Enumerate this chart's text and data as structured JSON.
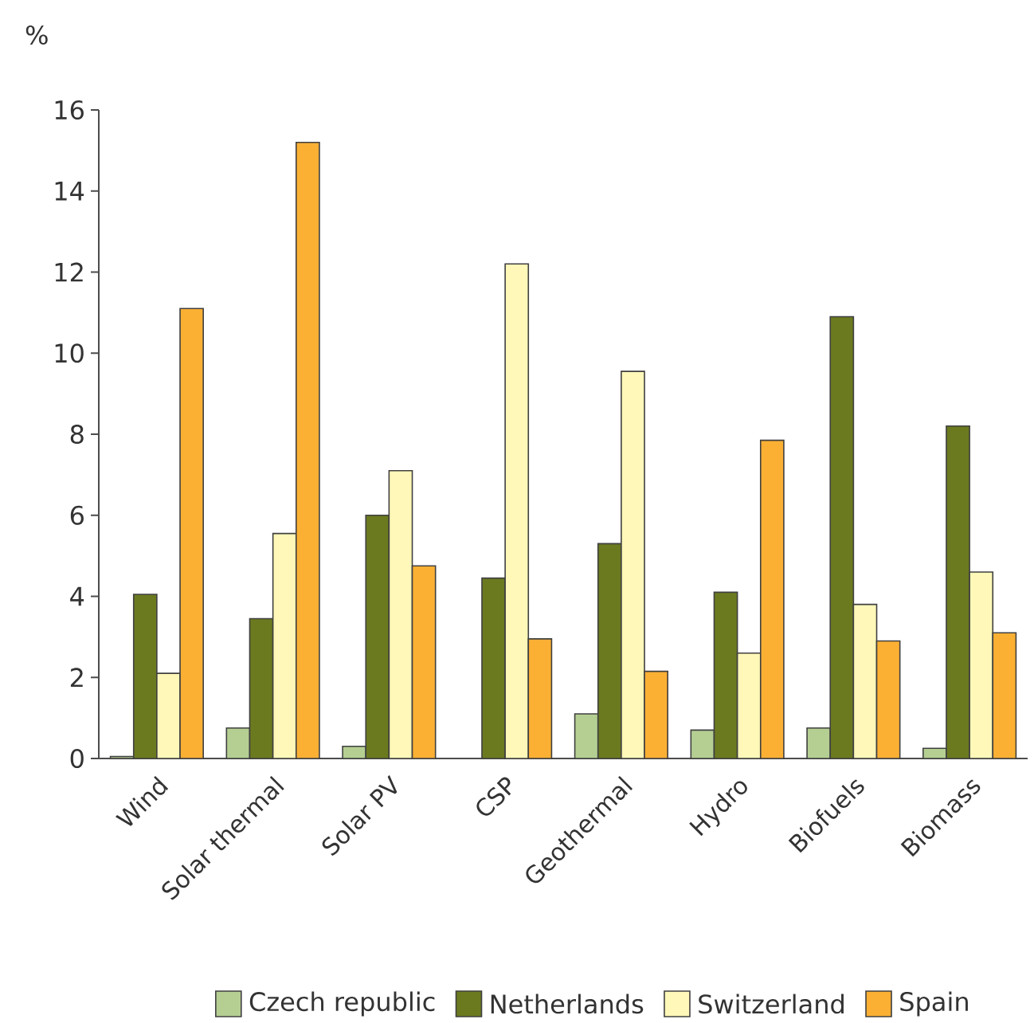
{
  "chart_data": {
    "type": "bar",
    "ylabel": "%",
    "categories": [
      "Wind",
      "Solar thermal",
      "Solar PV",
      "CSP",
      "Geothermal",
      "Hydro",
      "Biofuels",
      "Biomass"
    ],
    "series": [
      {
        "name": "Czech republic",
        "color": "#b5cf93",
        "values": [
          0.05,
          0.75,
          0.3,
          null,
          1.1,
          0.7,
          0.75,
          0.25
        ]
      },
      {
        "name": "Netherlands",
        "color": "#6b7a1f",
        "values": [
          4.05,
          3.45,
          6.0,
          4.45,
          5.3,
          4.1,
          10.9,
          8.2
        ]
      },
      {
        "name": "Switzerland",
        "color": "#fff8b8",
        "values": [
          2.1,
          5.55,
          7.1,
          12.2,
          9.55,
          2.6,
          3.8,
          4.6
        ]
      },
      {
        "name": "Spain",
        "color": "#fbb034",
        "values": [
          11.1,
          15.2,
          4.75,
          2.95,
          2.15,
          7.85,
          2.9,
          3.1
        ]
      }
    ],
    "ylim": [
      0,
      16
    ],
    "yticks": [
      0,
      2,
      4,
      6,
      8,
      10,
      12,
      14,
      16
    ],
    "grid": false,
    "legend": "bottom"
  }
}
